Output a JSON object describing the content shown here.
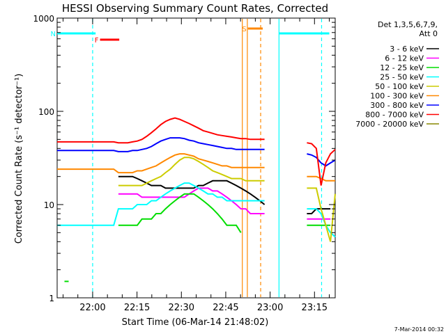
{
  "chart_data": {
    "type": "line",
    "title": "HESSI Observing Summary Count Rates, Corrected",
    "xlabel": "Start Time (06-Mar-14 21:48:02)",
    "ylabel": "Corrected Count Rate (s⁻¹ detector⁻¹)",
    "yscale": "log",
    "ylim": [
      1,
      1000
    ],
    "xlim_minutes": [
      0,
      94
    ],
    "x_ticks": [
      {
        "label": "22:00",
        "t": 12
      },
      {
        "label": "22:15",
        "t": 27
      },
      {
        "label": "22:30",
        "t": 42
      },
      {
        "label": "22:45",
        "t": 57
      },
      {
        "label": "23:00",
        "t": 72
      },
      {
        "label": "23:15",
        "t": 87
      }
    ],
    "y_ticks": [
      {
        "label": "1",
        "v": 1
      },
      {
        "label": "10",
        "v": 10
      },
      {
        "label": "100",
        "v": 100
      },
      {
        "label": "1000",
        "v": 1000
      }
    ],
    "legend": {
      "position": "right",
      "header": [
        "Det 1,3,5,6,7,9,",
        "Att 0"
      ],
      "entries": [
        {
          "label": "3 - 6 keV",
          "color": "#000000"
        },
        {
          "label": "6 - 12 keV",
          "color": "#ff00ff"
        },
        {
          "label": "12 - 25 keV",
          "color": "#00dd00"
        },
        {
          "label": "25 - 50 keV",
          "color": "#00ffff"
        },
        {
          "label": "50 - 100 keV",
          "color": "#cccc00"
        },
        {
          "label": "100 - 300 keV",
          "color": "#ff8800"
        },
        {
          "label": "300 - 800 keV",
          "color": "#0000ff"
        },
        {
          "label": "800 - 7000 keV",
          "color": "#ff0000"
        },
        {
          "label": "7000 - 20000 keV",
          "color": "#888800"
        }
      ]
    },
    "series": [
      {
        "name": "3 - 6 keV",
        "color": "#000000",
        "values": [
          null,
          null,
          null,
          null,
          null,
          null,
          null,
          null,
          null,
          null,
          null,
          null,
          null,
          20,
          20,
          20,
          20,
          19,
          18,
          17,
          16,
          16,
          16,
          15,
          15,
          15,
          15,
          15,
          15,
          15,
          16,
          16,
          17,
          18,
          18,
          18,
          18,
          17,
          16,
          15,
          14,
          13,
          12,
          11,
          10,
          null,
          null,
          null,
          null,
          null,
          null,
          null,
          null,
          8,
          8,
          9,
          9,
          9,
          9,
          null
        ]
      },
      {
        "name": "6 - 12 keV",
        "color": "#ff00ff",
        "values": [
          null,
          null,
          null,
          null,
          null,
          null,
          null,
          null,
          null,
          null,
          null,
          null,
          null,
          13,
          13,
          13,
          13,
          13,
          12,
          12,
          12,
          12,
          12,
          12,
          12,
          12,
          12,
          12,
          13,
          14,
          15,
          15,
          15,
          14,
          14,
          13,
          12,
          11,
          10,
          9,
          9,
          8,
          8,
          8,
          8,
          null,
          null,
          null,
          null,
          null,
          null,
          null,
          null,
          7,
          7,
          7,
          7,
          7,
          7,
          null
        ]
      },
      {
        "name": "12 - 25 keV",
        "color": "#00dd00",
        "values": [
          null,
          null,
          1.5,
          null,
          null,
          null,
          null,
          null,
          null,
          null,
          null,
          null,
          null,
          6,
          6,
          6,
          6,
          6,
          7,
          7,
          7,
          8,
          8,
          9,
          10,
          11,
          12,
          13,
          13,
          13,
          12,
          11,
          10,
          9,
          8,
          7,
          6,
          6,
          6,
          5,
          null,
          null,
          null,
          null,
          null,
          null,
          null,
          null,
          null,
          null,
          null,
          null,
          null,
          6,
          6,
          6,
          6,
          6,
          6,
          null
        ]
      },
      {
        "name": "25 - 50 keV",
        "color": "#00ffff",
        "values": [
          6,
          6,
          6,
          6,
          6,
          6,
          6,
          6,
          6,
          6,
          6,
          6,
          6,
          9,
          9,
          9,
          9,
          10,
          10,
          10,
          11,
          11,
          12,
          13,
          14,
          15,
          16,
          17,
          17,
          16,
          15,
          14,
          13,
          13,
          12,
          12,
          11,
          11,
          11,
          11,
          11,
          11,
          11,
          11,
          11,
          null,
          null,
          null,
          null,
          null,
          null,
          null,
          null,
          9,
          9,
          9,
          8,
          6,
          5,
          4.5
        ]
      },
      {
        "name": "50 - 100 keV",
        "color": "#cccc00",
        "values": [
          null,
          null,
          null,
          null,
          null,
          null,
          null,
          null,
          null,
          null,
          null,
          null,
          null,
          16,
          16,
          16,
          16,
          16,
          16,
          17,
          18,
          19,
          20,
          22,
          24,
          27,
          30,
          32,
          32,
          31,
          29,
          27,
          25,
          23,
          22,
          21,
          20,
          19,
          19,
          19,
          18,
          18,
          18,
          18,
          18,
          null,
          null,
          null,
          null,
          null,
          null,
          null,
          null,
          15,
          15,
          15,
          9,
          6,
          4,
          13
        ]
      },
      {
        "name": "100 - 300 keV",
        "color": "#ff8800",
        "values": [
          24,
          24,
          24,
          24,
          24,
          24,
          24,
          24,
          24,
          24,
          24,
          24,
          24,
          22,
          22,
          22,
          22,
          23,
          23,
          24,
          25,
          26,
          28,
          30,
          32,
          34,
          35,
          35,
          34,
          33,
          31,
          30,
          29,
          28,
          27,
          26,
          26,
          25,
          25,
          25,
          25,
          25,
          25,
          25,
          25,
          null,
          null,
          null,
          null,
          null,
          null,
          null,
          null,
          20,
          20,
          20,
          19,
          18,
          18,
          18
        ]
      },
      {
        "name": "300 - 800 keV",
        "color": "#0000ff",
        "values": [
          38,
          38,
          38,
          38,
          38,
          38,
          38,
          38,
          38,
          38,
          38,
          38,
          38,
          37,
          37,
          37,
          38,
          38,
          39,
          40,
          42,
          45,
          48,
          50,
          52,
          52,
          52,
          51,
          49,
          48,
          46,
          45,
          44,
          43,
          42,
          41,
          40,
          40,
          39,
          39,
          39,
          39,
          39,
          39,
          39,
          null,
          null,
          null,
          null,
          null,
          null,
          null,
          null,
          35,
          34,
          32,
          28,
          26,
          28,
          30
        ]
      },
      {
        "name": "800 - 7000 keV",
        "color": "#ff0000",
        "values": [
          47,
          47,
          47,
          47,
          47,
          47,
          47,
          47,
          47,
          47,
          47,
          47,
          47,
          46,
          46,
          46,
          47,
          48,
          50,
          54,
          59,
          65,
          72,
          78,
          82,
          85,
          82,
          78,
          74,
          70,
          66,
          62,
          60,
          58,
          56,
          55,
          54,
          53,
          52,
          51,
          51,
          50,
          50,
          50,
          50,
          null,
          null,
          null,
          null,
          null,
          null,
          null,
          null,
          46,
          45,
          40,
          16,
          28,
          35,
          39
        ]
      },
      {
        "name": "7000 - 20000 keV",
        "color": "#888800",
        "values": []
      }
    ],
    "annotations": {
      "markers": [
        {
          "label": "F",
          "color": "#ff0000",
          "t0": 14.5,
          "t1": 21
        },
        {
          "label": "N",
          "color": "#00ffff",
          "t0": 0,
          "t1": 13
        },
        {
          "label": "S",
          "color": "#ff8800",
          "t0": 64.5,
          "t1": 69.5
        }
      ]
    }
  },
  "footer": {
    "timestamp": "7-Mar-2014 00:32"
  }
}
